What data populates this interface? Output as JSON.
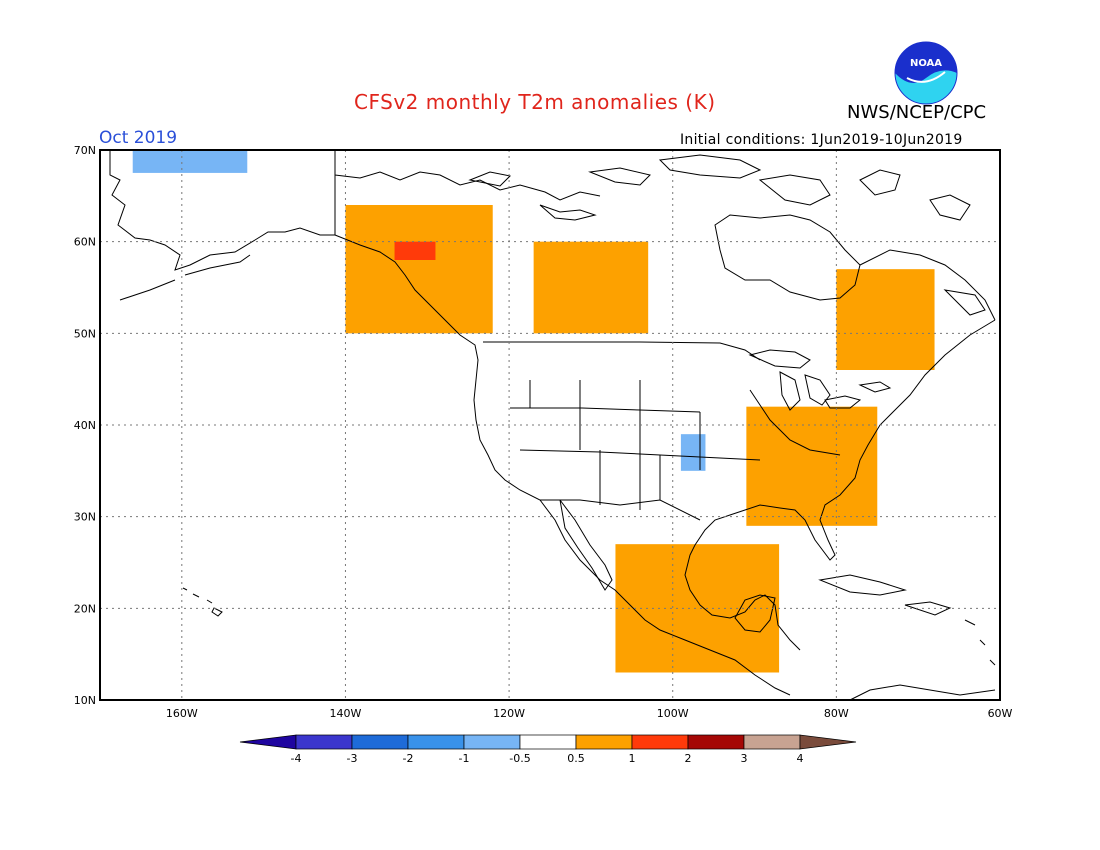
{
  "header": {
    "title": "CFSv2 monthly T2m anomalies (K)",
    "agency": "NWS/NCEP/CPC",
    "month": "Oct 2019",
    "initial_conditions": "Initial conditions: 1Jun2019-10Jun2019",
    "logo_text": "NOAA"
  },
  "map": {
    "lon_range": [
      -170,
      -60
    ],
    "lat_range": [
      10,
      70
    ],
    "lat_labels": [
      "70N",
      "60N",
      "50N",
      "40N",
      "30N",
      "20N",
      "10N"
    ],
    "lon_labels": [
      "160W",
      "140W",
      "120W",
      "100W",
      "80W",
      "60W"
    ],
    "anomaly_regions": [
      {
        "name": "Alaska north coast",
        "level": "-0.5",
        "color": "#77b5f5",
        "lon": [
          -166,
          -152
        ],
        "lat": [
          67.5,
          70
        ]
      },
      {
        "name": "Canada Pacific coast",
        "level": "0.5",
        "color": "#fda100",
        "lon": [
          -140,
          -122
        ],
        "lat": [
          50,
          64
        ]
      },
      {
        "name": "Canadian prairies",
        "level": "0.5",
        "color": "#fda100",
        "lon": [
          -117,
          -103
        ],
        "lat": [
          50,
          60
        ]
      },
      {
        "name": "Quebec",
        "level": "0.5",
        "color": "#fda100",
        "lon": [
          -80,
          -68
        ],
        "lat": [
          46,
          57
        ]
      },
      {
        "name": "US Southeast",
        "level": "0.5",
        "color": "#fda100",
        "lon": [
          -91,
          -75
        ],
        "lat": [
          29,
          42
        ]
      },
      {
        "name": "Mexico",
        "level": "0.5",
        "color": "#fda100",
        "lon": [
          -107,
          -87
        ],
        "lat": [
          13,
          27
        ]
      },
      {
        "name": "Central Plains",
        "level": "-0.5",
        "color": "#77b5f5",
        "lon": [
          -99,
          -96
        ],
        "lat": [
          35,
          39
        ]
      },
      {
        "name": "BC hotspot",
        "level": "1",
        "color": "#ff3a0a",
        "lon": [
          -134,
          -129
        ],
        "lat": [
          58,
          60
        ]
      }
    ]
  },
  "colorbar": {
    "labels": [
      "-4",
      "-3",
      "-2",
      "-1",
      "-0.5",
      "0.5",
      "1",
      "2",
      "3",
      "4"
    ],
    "colors": [
      "#1f05a0",
      "#3b36cd",
      "#1e6bd8",
      "#3992ea",
      "#77b5f5",
      "#ffffff",
      "#fda100",
      "#ff3a0a",
      "#a50705",
      "#c8a392",
      "#7a4b3b"
    ]
  }
}
